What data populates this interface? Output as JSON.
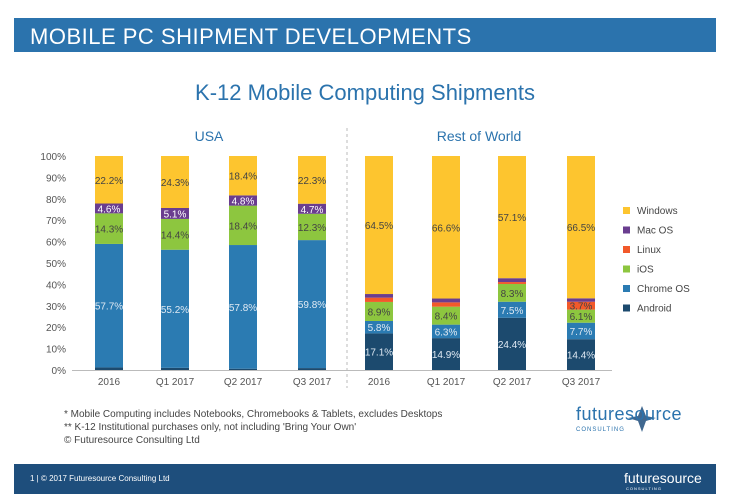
{
  "header": {
    "title": "MOBILE PC SHIPMENT DEVELOPMENTS"
  },
  "chart_data": {
    "type": "bar",
    "stacked": true,
    "title": "K-12 Mobile Computing Shipments",
    "panels": [
      "USA",
      "Rest of World"
    ],
    "categories": [
      "2016",
      "Q1 2017",
      "Q2 2017",
      "Q3 2017"
    ],
    "yticks": [
      "100%",
      "90%",
      "80%",
      "70%",
      "60%",
      "50%",
      "40%",
      "30%",
      "20%",
      "10%",
      "0%"
    ],
    "ylim": [
      0,
      100
    ],
    "series_order_bottom_to_top": [
      "Android",
      "Chrome OS",
      "iOS",
      "Linux",
      "Mac OS",
      "Windows"
    ],
    "legend": [
      "Windows",
      "Mac OS",
      "Linux",
      "iOS",
      "Chrome OS",
      "Android"
    ],
    "colors": {
      "Windows": "#fdc52f",
      "Mac OS": "#6a3d8f",
      "Linux": "#f2592a",
      "iOS": "#8dc63f",
      "Chrome OS": "#2b7bb2",
      "Android": "#1c4a6e"
    },
    "USA": [
      {
        "category": "2016",
        "values": {
          "Android": 1.2,
          "Chrome OS": 57.7,
          "iOS": 14.3,
          "Linux": 0,
          "Mac OS": 4.6,
          "Windows": 22.2
        },
        "labels": {
          "Chrome OS": "57.7%",
          "iOS": "14.3%",
          "Mac OS": "4.6%",
          "Windows": "22.2%"
        }
      },
      {
        "category": "Q1 2017",
        "values": {
          "Android": 1.0,
          "Chrome OS": 55.2,
          "iOS": 14.4,
          "Linux": 0,
          "Mac OS": 5.1,
          "Windows": 24.3
        },
        "labels": {
          "Chrome OS": "55.2%",
          "iOS": "14.4%",
          "Mac OS": "5.1%",
          "Windows": "24.3%"
        }
      },
      {
        "category": "Q2 2017",
        "values": {
          "Android": 0.6,
          "Chrome OS": 57.8,
          "iOS": 18.4,
          "Linux": 0,
          "Mac OS": 4.8,
          "Windows": 18.4
        },
        "labels": {
          "Chrome OS": "57.8%",
          "iOS": "18.4%",
          "Mac OS": "4.8%",
          "Windows": "18.4%"
        }
      },
      {
        "category": "Q3 2017",
        "values": {
          "Android": 0.9,
          "Chrome OS": 59.8,
          "iOS": 12.3,
          "Linux": 0,
          "Mac OS": 4.7,
          "Windows": 22.3
        },
        "labels": {
          "Chrome OS": "59.8%",
          "iOS": "12.3%",
          "Mac OS": "4.7%",
          "Windows": "22.3%"
        }
      }
    ],
    "Rest of World": [
      {
        "category": "2016",
        "values": {
          "Android": 17.1,
          "Chrome OS": 5.8,
          "iOS": 8.9,
          "Linux": 2.0,
          "Mac OS": 1.7,
          "Windows": 64.5
        },
        "labels": {
          "Android": "17.1%",
          "Chrome OS": "5.8%",
          "iOS": "8.9%",
          "Windows": "64.5%"
        }
      },
      {
        "category": "Q1 2017",
        "values": {
          "Android": 14.9,
          "Chrome OS": 6.3,
          "iOS": 8.4,
          "Linux": 2.0,
          "Mac OS": 1.8,
          "Windows": 66.6
        },
        "labels": {
          "Android": "14.9%",
          "Chrome OS": "6.3%",
          "iOS": "8.4%",
          "Windows": "66.6%"
        }
      },
      {
        "category": "Q2 2017",
        "values": {
          "Android": 24.4,
          "Chrome OS": 7.5,
          "iOS": 8.3,
          "Linux": 0.9,
          "Mac OS": 1.8,
          "Windows": 57.1
        },
        "labels": {
          "Android": "24.4%",
          "Chrome OS": "7.5%",
          "iOS": "8.3%",
          "Windows": "57.1%"
        }
      },
      {
        "category": "Q3 2017",
        "values": {
          "Android": 14.4,
          "Chrome OS": 7.7,
          "iOS": 6.1,
          "Linux": 3.7,
          "Mac OS": 1.6,
          "Windows": 66.5
        },
        "labels": {
          "Android": "14.4%",
          "Chrome OS": "7.7%",
          "iOS": "6.1%",
          "Linux": "3.7%",
          "Windows": "66.5%"
        }
      }
    ]
  },
  "notes": [
    "* Mobile Computing includes Notebooks, Chromebooks & Tablets, excludes Desktops",
    "** K-12 Institutional purchases only, not including 'Bring Your Own'",
    "© Futuresource Consulting Ltd"
  ],
  "brand": {
    "name": "futuresource",
    "sub": "CONSULTING"
  },
  "footer": {
    "text": "1  |  © 2017 Futuresource Consulting Ltd",
    "brand": "futuresource",
    "brand_sub": "CONSULTING"
  }
}
